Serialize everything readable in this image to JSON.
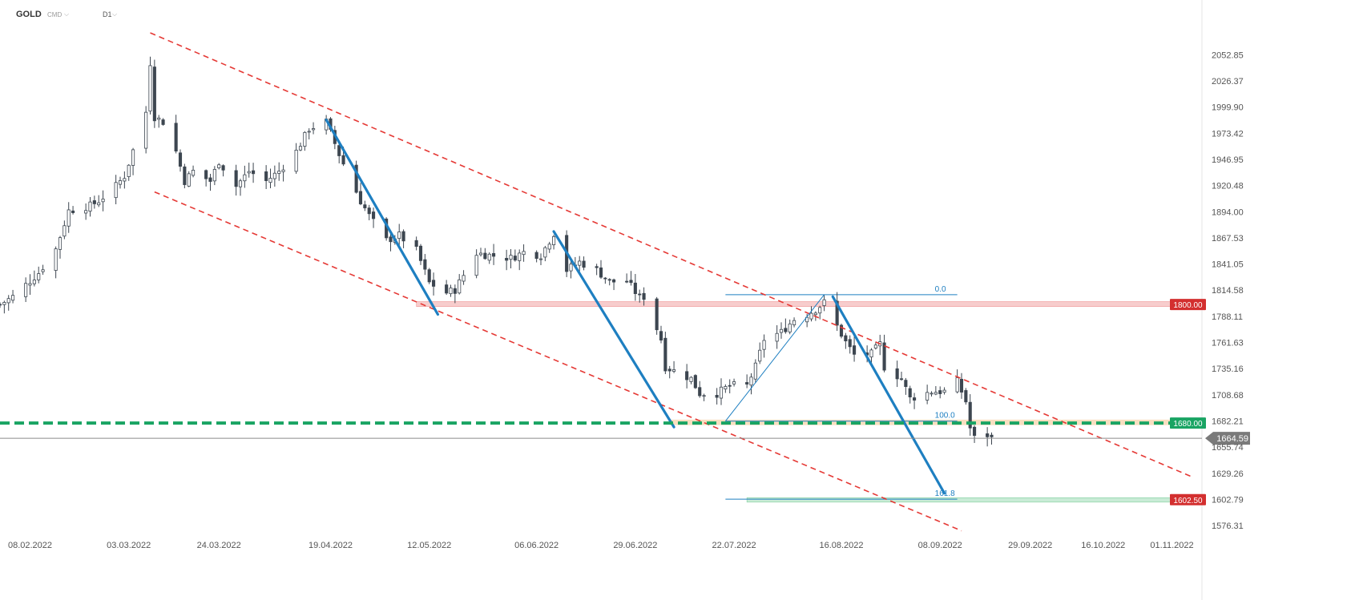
{
  "header": {
    "symbol": "GOLD",
    "category": "CMD",
    "timeframe": "D1",
    "dropdown_icon": "chevron-down-icon"
  },
  "chart_data": {
    "type": "candlestick",
    "title": "",
    "xlabel": "",
    "ylabel": "",
    "ylim": [
      1565,
      2088
    ],
    "xlim": [
      "2022-02-01",
      "2022-11-08"
    ],
    "grid": false,
    "y_ticks": [
      2052.85,
      2026.37,
      1999.9,
      1973.42,
      1946.95,
      1920.48,
      1894.0,
      1867.53,
      1841.05,
      1814.58,
      1788.11,
      1761.63,
      1735.16,
      1708.68,
      1682.21,
      1655.74,
      1629.26,
      1602.79,
      1576.31
    ],
    "x_ticks": [
      "08.02.2022",
      "03.03.2022",
      "24.03.2022",
      "19.04.2022",
      "12.05.2022",
      "06.06.2022",
      "29.06.2022",
      "22.07.2022",
      "16.08.2022",
      "08.09.2022",
      "29.09.2022",
      "16.10.2022",
      "01.11.2022"
    ],
    "x_tick_dates": [
      "2022-02-08",
      "2022-03-03",
      "2022-03-24",
      "2022-04-19",
      "2022-05-12",
      "2022-06-06",
      "2022-06-29",
      "2022-07-22",
      "2022-08-16",
      "2022-09-08",
      "2022-09-29",
      "2022-10-16",
      "2022-11-01"
    ],
    "current_price": {
      "label": "1664.59",
      "value": 1664.59,
      "color": "#7a7a7a"
    },
    "candle_colors": {
      "up": "#ffffff",
      "down": "#3d4650",
      "outline": "#3d4650"
    },
    "price_path": [
      [
        "2022-02-01",
        1800
      ],
      [
        "2022-02-04",
        1808
      ],
      [
        "2022-02-10",
        1832
      ],
      [
        "2022-02-14",
        1856
      ],
      [
        "2022-02-17",
        1895
      ],
      [
        "2022-02-22",
        1900
      ],
      [
        "2022-02-24",
        1905
      ],
      [
        "2022-02-28",
        1920
      ],
      [
        "2022-03-02",
        1930
      ],
      [
        "2022-03-07",
        1995
      ],
      [
        "2022-03-08",
        2045
      ],
      [
        "2022-03-09",
        1990
      ],
      [
        "2022-03-11",
        1985
      ],
      [
        "2022-03-14",
        1955
      ],
      [
        "2022-03-16",
        1925
      ],
      [
        "2022-03-18",
        1935
      ],
      [
        "2022-03-22",
        1925
      ],
      [
        "2022-03-24",
        1945
      ],
      [
        "2022-03-28",
        1920
      ],
      [
        "2022-03-31",
        1935
      ],
      [
        "2022-04-04",
        1925
      ],
      [
        "2022-04-07",
        1935
      ],
      [
        "2022-04-11",
        1955
      ],
      [
        "2022-04-14",
        1978
      ],
      [
        "2022-04-18",
        1985
      ],
      [
        "2022-04-21",
        1952
      ],
      [
        "2022-04-26",
        1905
      ],
      [
        "2022-04-28",
        1890
      ],
      [
        "2022-05-02",
        1865
      ],
      [
        "2022-05-05",
        1870
      ],
      [
        "2022-05-09",
        1855
      ],
      [
        "2022-05-12",
        1822
      ],
      [
        "2022-05-16",
        1812
      ],
      [
        "2022-05-18",
        1815
      ],
      [
        "2022-05-23",
        1852
      ],
      [
        "2022-05-26",
        1850
      ],
      [
        "2022-05-31",
        1847
      ],
      [
        "2022-06-03",
        1853
      ],
      [
        "2022-06-07",
        1850
      ],
      [
        "2022-06-10",
        1872
      ],
      [
        "2022-06-13",
        1835
      ],
      [
        "2022-06-16",
        1843
      ],
      [
        "2022-06-20",
        1835
      ],
      [
        "2022-06-23",
        1823
      ],
      [
        "2022-06-27",
        1824
      ],
      [
        "2022-06-30",
        1807
      ],
      [
        "2022-07-01",
        1808
      ],
      [
        "2022-07-05",
        1765
      ],
      [
        "2022-07-06",
        1737
      ],
      [
        "2022-07-12",
        1725
      ],
      [
        "2022-07-14",
        1710
      ],
      [
        "2022-07-18",
        1710
      ],
      [
        "2022-07-21",
        1718
      ],
      [
        "2022-07-25",
        1718
      ],
      [
        "2022-07-27",
        1737
      ],
      [
        "2022-07-29",
        1765
      ],
      [
        "2022-08-02",
        1772
      ],
      [
        "2022-08-05",
        1785
      ],
      [
        "2022-08-08",
        1790
      ],
      [
        "2022-08-10",
        1795
      ],
      [
        "2022-08-12",
        1802
      ],
      [
        "2022-08-15",
        1778
      ],
      [
        "2022-08-17",
        1762
      ],
      [
        "2022-08-19",
        1749
      ],
      [
        "2022-08-23",
        1750
      ],
      [
        "2022-08-25",
        1760
      ],
      [
        "2022-08-26",
        1737
      ],
      [
        "2022-08-30",
        1725
      ],
      [
        "2022-09-01",
        1705
      ],
      [
        "2022-09-06",
        1712
      ],
      [
        "2022-09-09",
        1712
      ],
      [
        "2022-09-12",
        1722
      ],
      [
        "2022-09-14",
        1702
      ],
      [
        "2022-09-15",
        1675
      ],
      [
        "2022-09-16",
        1665
      ],
      [
        "2022-09-19",
        1668
      ],
      [
        "2022-09-20",
        1664.59
      ]
    ],
    "trendlines": [
      {
        "name": "channel-upper-line",
        "style": "dashed",
        "color": "#e53935",
        "from": [
          "2022-03-08",
          2075
        ],
        "to": [
          "2022-11-06",
          1625
        ]
      },
      {
        "name": "channel-lower-line",
        "style": "dashed",
        "color": "#e53935",
        "from": [
          "2022-03-09",
          1914
        ],
        "to": [
          "2022-09-13",
          1571
        ]
      },
      {
        "name": "impulse-down-1-line",
        "style": "solid",
        "color": "#1e7fc1",
        "from": [
          "2022-04-18",
          1987
        ],
        "to": [
          "2022-05-14",
          1790
        ]
      },
      {
        "name": "impulse-down-2-line",
        "style": "solid",
        "color": "#1e7fc1",
        "from": [
          "2022-06-10",
          1874
        ],
        "to": [
          "2022-07-08",
          1676
        ]
      },
      {
        "name": "impulse-down-3-line",
        "style": "solid",
        "color": "#1e7fc1",
        "from": [
          "2022-08-14",
          1808
        ],
        "to": [
          "2022-09-09",
          1609
        ]
      },
      {
        "name": "fib-swing-line",
        "style": "thin",
        "color": "#1e7fc1",
        "from": [
          "2022-07-20",
          1682
        ],
        "to": [
          "2022-08-12",
          1810
        ]
      }
    ],
    "zones": [
      {
        "name": "resistance-zone-1800",
        "color": "#f4b8b8",
        "from": "2022-05-09",
        "to": "2022-11-08",
        "low": 1798,
        "high": 1803
      }
    ],
    "levels": [
      {
        "name": "level-1800",
        "value": 1800.0,
        "label": "1800.00",
        "color": "#d32f2f",
        "style": "zone"
      },
      {
        "name": "level-1680",
        "value": 1680.0,
        "label": "1680.00",
        "color": "#19a463",
        "style": "dashed-thick"
      },
      {
        "name": "level-1602",
        "value": 1602.5,
        "label": "1602.50",
        "color": "#d32f2f",
        "style": "zone-green"
      }
    ],
    "fibonacci": [
      {
        "label": "0.0",
        "value": 1810
      },
      {
        "label": "100.0",
        "value": 1682
      },
      {
        "label": "161.8",
        "value": 1603
      }
    ]
  }
}
